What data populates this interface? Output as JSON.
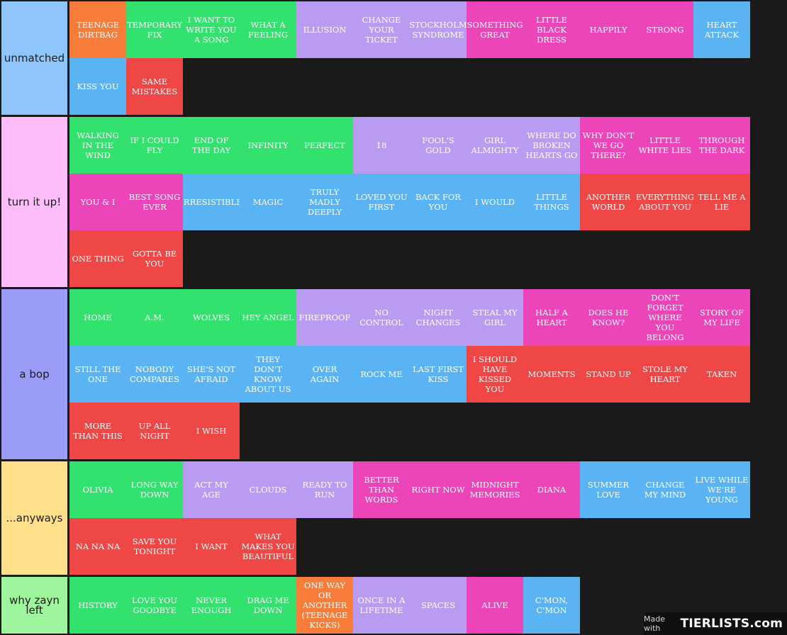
{
  "colors": {
    "orange": "#f97d3a",
    "green": "#33e16e",
    "purple": "#b99cf2",
    "magenta": "#eb45b9",
    "blue": "#5ab4f4",
    "red": "#ef4646"
  },
  "tiers": [
    {
      "label": "unmatched",
      "color": "#8ec6fb",
      "rows": 2,
      "items": [
        {
          "text": "TEENAGE DIRTBAG",
          "color": "orange"
        },
        {
          "text": "TEMPORARY FIX",
          "color": "green"
        },
        {
          "text": "I WANT TO WRITE YOU A SONG",
          "color": "green"
        },
        {
          "text": "WHAT A FEELING",
          "color": "green"
        },
        {
          "text": "ILLUSION",
          "color": "purple"
        },
        {
          "text": "CHANGE YOUR TICKET",
          "color": "purple"
        },
        {
          "text": "STOCKHOLM SYNDROME",
          "color": "purple"
        },
        {
          "text": "SOMETHING GREAT",
          "color": "magenta"
        },
        {
          "text": "LITTLE BLACK DRESS",
          "color": "magenta"
        },
        {
          "text": "HAPPILY",
          "color": "magenta"
        },
        {
          "text": "STRONG",
          "color": "magenta"
        },
        {
          "text": "HEART ATTACK",
          "color": "blue"
        },
        {
          "text": "KISS YOU",
          "color": "blue"
        },
        {
          "text": "SAME MISTAKES",
          "color": "red"
        }
      ]
    },
    {
      "label": "turn it up!",
      "color": "#ffbdfb",
      "rows": 3,
      "items": [
        {
          "text": "WALKING IN THE WIND",
          "color": "green"
        },
        {
          "text": "IF I COULD FLY",
          "color": "green"
        },
        {
          "text": "END OF THE DAY",
          "color": "green"
        },
        {
          "text": "INFINITY",
          "color": "green"
        },
        {
          "text": "PERFECT",
          "color": "green"
        },
        {
          "text": "18",
          "color": "purple"
        },
        {
          "text": "FOOL'S GOLD",
          "color": "purple"
        },
        {
          "text": "GIRL ALMIGHTY",
          "color": "purple"
        },
        {
          "text": "WHERE DO BROKEN HEARTS GO",
          "color": "purple"
        },
        {
          "text": "WHY DON'T WE GO THERE?",
          "color": "magenta"
        },
        {
          "text": "LITTLE WHITE LIES",
          "color": "magenta"
        },
        {
          "text": "THROUGH THE DARK",
          "color": "magenta"
        },
        {
          "text": "YOU & I",
          "color": "magenta"
        },
        {
          "text": "BEST SONG EVER",
          "color": "magenta"
        },
        {
          "text": "IRRESISTIBLE",
          "color": "blue"
        },
        {
          "text": "MAGIC",
          "color": "blue"
        },
        {
          "text": "TRULY MADLY DEEPLY",
          "color": "blue"
        },
        {
          "text": "LOVED YOU FIRST",
          "color": "blue"
        },
        {
          "text": "BACK FOR YOU",
          "color": "blue"
        },
        {
          "text": "I WOULD",
          "color": "blue"
        },
        {
          "text": "LITTLE THINGS",
          "color": "blue"
        },
        {
          "text": "ANOTHER WORLD",
          "color": "red"
        },
        {
          "text": "EVERYTHING ABOUT YOU",
          "color": "red"
        },
        {
          "text": "TELL ME A LIE",
          "color": "red"
        },
        {
          "text": "ONE THING",
          "color": "red"
        },
        {
          "text": "GOTTA BE YOU",
          "color": "red"
        }
      ]
    },
    {
      "label": "a bop",
      "color": "#9b9cf8",
      "rows": 3,
      "items": [
        {
          "text": "HOME",
          "color": "green"
        },
        {
          "text": "A.M.",
          "color": "green"
        },
        {
          "text": "WOLVES",
          "color": "green"
        },
        {
          "text": "HEY ANGEL",
          "color": "green"
        },
        {
          "text": "FIREPROOF",
          "color": "purple"
        },
        {
          "text": "NO CONTROL",
          "color": "purple"
        },
        {
          "text": "NIGHT CHANGES",
          "color": "purple"
        },
        {
          "text": "STEAL MY GIRL",
          "color": "purple"
        },
        {
          "text": "HALF A HEART",
          "color": "magenta"
        },
        {
          "text": "DOES HE KNOW?",
          "color": "magenta"
        },
        {
          "text": "DON'T FORGET WHERE YOU BELONG",
          "color": "magenta"
        },
        {
          "text": "STORY OF MY LIFE",
          "color": "magenta"
        },
        {
          "text": "STILL THE ONE",
          "color": "blue"
        },
        {
          "text": "NOBODY COMPARES",
          "color": "blue"
        },
        {
          "text": "SHE'S NOT AFRAID",
          "color": "blue"
        },
        {
          "text": "THEY DON'T KNOW ABOUT US",
          "color": "blue"
        },
        {
          "text": "OVER AGAIN",
          "color": "blue"
        },
        {
          "text": "ROCK ME",
          "color": "blue"
        },
        {
          "text": "LAST FIRST KISS",
          "color": "blue"
        },
        {
          "text": "I SHOULD HAVE KISSED YOU",
          "color": "red"
        },
        {
          "text": "MOMENTS",
          "color": "red"
        },
        {
          "text": "STAND UP",
          "color": "red"
        },
        {
          "text": "STOLE MY HEART",
          "color": "red"
        },
        {
          "text": "TAKEN",
          "color": "red"
        },
        {
          "text": "MORE THAN THIS",
          "color": "red"
        },
        {
          "text": "UP ALL NIGHT",
          "color": "red"
        },
        {
          "text": "I WISH",
          "color": "red"
        }
      ]
    },
    {
      "label": "...anyways",
      "color": "#ffe08a",
      "rows": 2,
      "items": [
        {
          "text": "OLIVIA",
          "color": "green"
        },
        {
          "text": "LONG WAY DOWN",
          "color": "green"
        },
        {
          "text": "ACT MY AGE",
          "color": "purple"
        },
        {
          "text": "CLOUDS",
          "color": "purple"
        },
        {
          "text": "READY TO RUN",
          "color": "purple"
        },
        {
          "text": "BETTER THAN WORDS",
          "color": "magenta"
        },
        {
          "text": "RIGHT NOW",
          "color": "magenta"
        },
        {
          "text": "MIDNIGHT MEMORIES",
          "color": "magenta"
        },
        {
          "text": "DIANA",
          "color": "magenta"
        },
        {
          "text": "SUMMER LOVE",
          "color": "blue"
        },
        {
          "text": "CHANGE MY MIND",
          "color": "blue"
        },
        {
          "text": "LIVE WHILE WE'RE YOUNG",
          "color": "blue"
        },
        {
          "text": "NA NA NA",
          "color": "red"
        },
        {
          "text": "SAVE YOU TONIGHT",
          "color": "red"
        },
        {
          "text": "I WANT",
          "color": "red"
        },
        {
          "text": "WHAT MAKES YOU BEAUTIFUL",
          "color": "red"
        }
      ]
    },
    {
      "label": "why zayn left",
      "color": "#9ff59d",
      "rows": 1,
      "items": [
        {
          "text": "HISTORY",
          "color": "green"
        },
        {
          "text": "LOVE YOU GOODBYE",
          "color": "green"
        },
        {
          "text": "NEVER ENOUGH",
          "color": "green"
        },
        {
          "text": "DRAG ME DOWN",
          "color": "green"
        },
        {
          "text": "ONE WAY OR ANOTHER (TEENAGE KICKS)",
          "color": "orange"
        },
        {
          "text": "ONCE IN A LIFETIME",
          "color": "purple"
        },
        {
          "text": "SPACES",
          "color": "purple"
        },
        {
          "text": "ALIVE",
          "color": "magenta"
        },
        {
          "text": "C'MON, C'MON",
          "color": "blue"
        }
      ]
    }
  ],
  "watermark": {
    "made_with": "Made with",
    "logo": "TIERLISTS.com"
  }
}
